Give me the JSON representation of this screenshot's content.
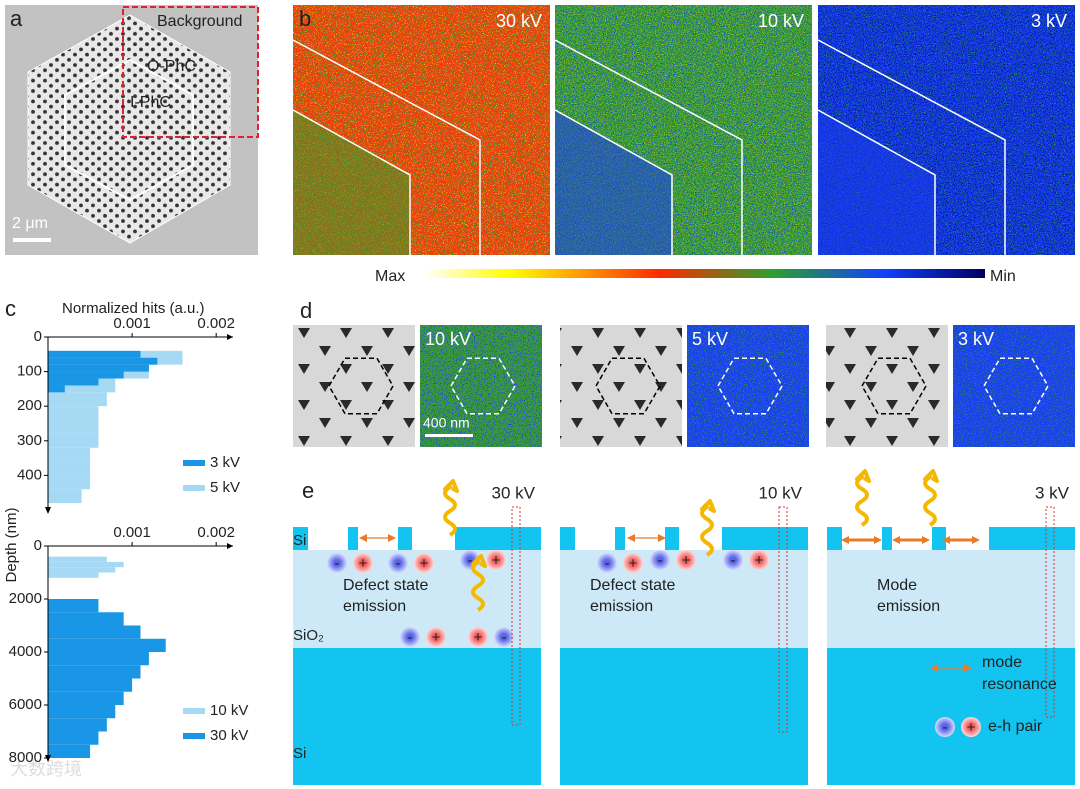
{
  "panel_a": {
    "label": "a",
    "background": "Background",
    "outer": "O-PhC",
    "inner": "I-PhC",
    "scale_bar": "2 μm"
  },
  "panel_b": {
    "label": "b",
    "maps": [
      "30 kV",
      "10 kV",
      "3 kV"
    ],
    "colorbar": {
      "max": "Max",
      "min": "Min"
    }
  },
  "panel_c": {
    "label": "c"
  },
  "chart_data": [
    {
      "type": "histogram",
      "orientation": "horizontal",
      "x_label": "Normalized hits (a.u.)",
      "y_label": "Depth (nm)",
      "xlim": [
        0,
        0.0022
      ],
      "xticks": [
        0.001,
        0.002
      ],
      "ylim": [
        0,
        500
      ],
      "yticks": [
        0,
        100,
        200,
        300,
        400
      ],
      "y_inverted": true,
      "legend": "lower right",
      "series": [
        {
          "name": "3 kV",
          "color": "#1a96e6",
          "bins": [
            40,
            60,
            80,
            100,
            120,
            140,
            160
          ],
          "values": [
            0.0011,
            0.0013,
            0.0012,
            0.0009,
            0.0006,
            0.0002
          ]
        },
        {
          "name": "5 kV",
          "color": "#a6daf4",
          "bins": [
            40,
            80,
            120,
            160,
            200,
            240,
            280,
            320,
            360,
            400,
            440,
            480
          ],
          "values": [
            0.0016,
            0.0012,
            0.0008,
            0.0007,
            0.0006,
            0.0006,
            0.0006,
            0.0005,
            0.0005,
            0.0005,
            0.0004
          ]
        }
      ]
    },
    {
      "type": "histogram",
      "orientation": "horizontal",
      "xlim": [
        0,
        0.0022
      ],
      "xticks": [
        0.001,
        0.002
      ],
      "ylim": [
        0,
        8000
      ],
      "yticks": [
        0,
        2000,
        4000,
        6000,
        8000
      ],
      "y_inverted": true,
      "legend": "lower right",
      "series": [
        {
          "name": "10 kV",
          "color": "#a6daf4",
          "bins": [
            400,
            600,
            800,
            1000,
            1200
          ],
          "values": [
            0.0007,
            0.0009,
            0.0008,
            0.0006
          ]
        },
        {
          "name": "30 kV",
          "color": "#1a96e6",
          "bins": [
            2000,
            2500,
            3000,
            3500,
            4000,
            4500,
            5000,
            5500,
            6000,
            6500,
            7000,
            7500,
            8000
          ],
          "values": [
            0.0006,
            0.0009,
            0.0011,
            0.0014,
            0.0012,
            0.0011,
            0.001,
            0.0009,
            0.0008,
            0.0007,
            0.0006,
            0.0005
          ]
        }
      ]
    }
  ],
  "panel_d": {
    "label": "d",
    "maps": [
      "10 kV",
      "5 kV",
      "3 kV"
    ],
    "scale_bar": "400 nm"
  },
  "panel_e": {
    "label": "e",
    "columns": [
      {
        "voltage": "30 kV",
        "text": [
          "Defect state",
          "emission"
        ]
      },
      {
        "voltage": "10 kV",
        "text": [
          "Defect state",
          "emission"
        ]
      },
      {
        "voltage": "3 kV",
        "text": [
          "Mode",
          "emission"
        ]
      }
    ],
    "layers": {
      "si_top": "Si",
      "sio2": "SiO₂",
      "si_bottom": "Si"
    },
    "legend": {
      "mode": [
        "mode",
        "resonance"
      ],
      "pair": "e-h pair"
    },
    "charge": {
      "minus": "-",
      "plus": "+"
    }
  },
  "watermark": "大数跨境"
}
